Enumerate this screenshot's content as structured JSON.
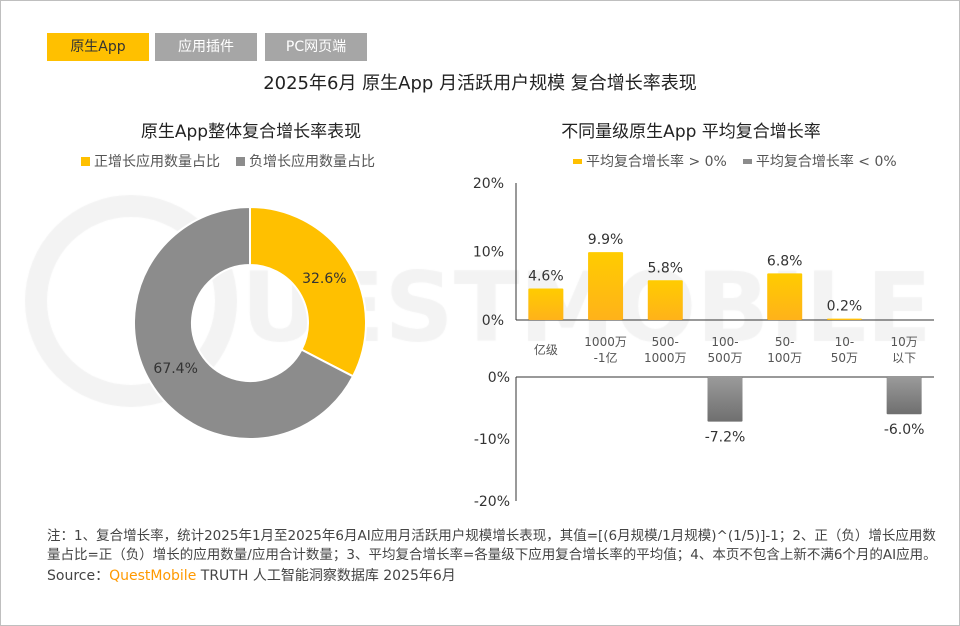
{
  "tabs": [
    {
      "label": "原生App",
      "active": true
    },
    {
      "label": "应用插件",
      "active": false
    },
    {
      "label": "PC网页端",
      "active": false
    }
  ],
  "title": "2025年6月 原生App 月活跃用户规模 复合增长率表现",
  "watermark": "QUESTMOBILE",
  "colors": {
    "positive": "#ffc000",
    "negative": "#8c8c8c",
    "brand": "#ff9900"
  },
  "chart_data": [
    {
      "type": "pie",
      "donut": true,
      "title": "原生App整体复合增长率表现",
      "legend": [
        "正增长应用数量占比",
        "负增长应用数量占比"
      ],
      "legend_placement": "top",
      "values": [
        32.6,
        67.4
      ],
      "labels": [
        "32.6%",
        "67.4%"
      ]
    },
    {
      "type": "bar",
      "title": "不同量级原生App 平均复合增长率",
      "legend": [
        "平均复合增长率 > 0%",
        "平均复合增长率 < 0%"
      ],
      "legend_placement": "top",
      "categories": [
        [
          "亿级"
        ],
        [
          "1000万",
          "-1亿"
        ],
        [
          "500-",
          "1000万"
        ],
        [
          "100-",
          "500万"
        ],
        [
          "50-",
          "100万"
        ],
        [
          "10-",
          "50万"
        ],
        [
          "10万",
          "以下"
        ]
      ],
      "positive_series": {
        "values": [
          4.6,
          9.9,
          5.8,
          null,
          6.8,
          0.2,
          null
        ],
        "labels": [
          "4.6%",
          "9.9%",
          "5.8%",
          "",
          "6.8%",
          "0.2%",
          ""
        ],
        "ylim": [
          0,
          20
        ],
        "ticks": [
          "20%",
          "10%",
          "0%"
        ]
      },
      "negative_series": {
        "values": [
          null,
          null,
          null,
          -7.2,
          null,
          null,
          -6.0
        ],
        "labels": [
          "",
          "",
          "",
          "-7.2%",
          "",
          "",
          "-6.0%"
        ],
        "ylim": [
          -20,
          0
        ],
        "ticks": [
          "0%",
          "-10%",
          "-20%"
        ]
      }
    }
  ],
  "note": "注：1、复合增长率，统计2025年1月至2025年6月AI应用月活跃用户规模增长表现，其值=[(6月规模/1月规模)^(1/5)]-1；2、正（负）增长应用数量占比=正（负）增长的应用数量/应用合计数量；3、平均复合增长率=各量级下应用复合增长率的平均值；4、本页不包含上新不满6个月的AI应用。",
  "source": {
    "prefix": "Source：",
    "brand": "QuestMobile",
    "rest": " TRUTH 人工智能洞察数据库 2025年6月"
  }
}
